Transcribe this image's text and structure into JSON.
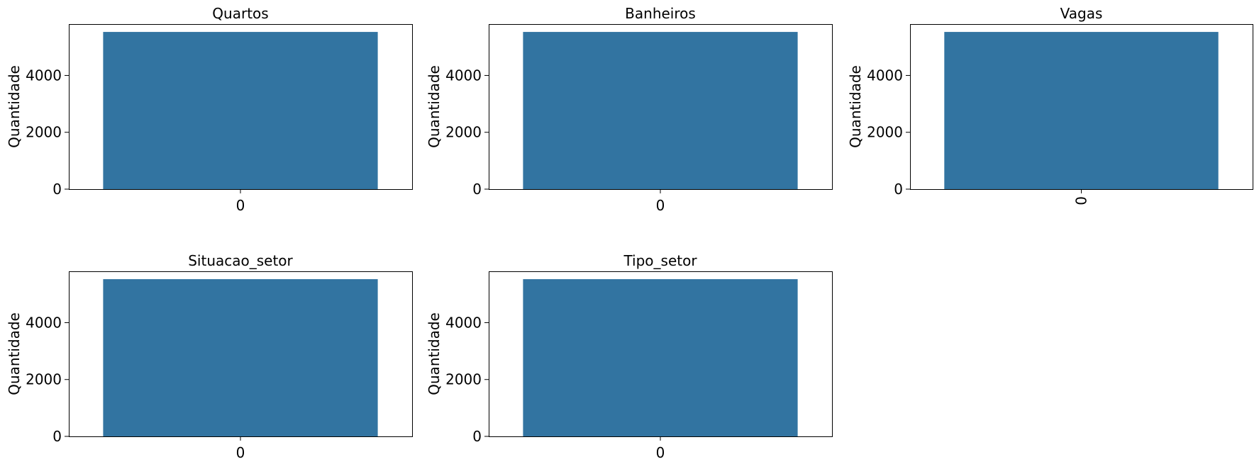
{
  "chart_data": [
    {
      "type": "bar",
      "title": "Quartos",
      "categories": [
        "0"
      ],
      "values": [
        5530
      ],
      "xlabel": "",
      "ylabel": "Quantidade",
      "ylim": [
        0,
        5806
      ],
      "yticks": [
        "0",
        "2000",
        "4000"
      ],
      "xtick_rotation": 0,
      "grid": false,
      "color": "#3274a1"
    },
    {
      "type": "bar",
      "title": "Banheiros",
      "categories": [
        "0"
      ],
      "values": [
        5530
      ],
      "xlabel": "",
      "ylabel": "Quantidade",
      "ylim": [
        0,
        5806
      ],
      "yticks": [
        "0",
        "2000",
        "4000"
      ],
      "xtick_rotation": 0,
      "grid": false,
      "color": "#3274a1"
    },
    {
      "type": "bar",
      "title": "Vagas",
      "categories": [
        "0"
      ],
      "values": [
        5530
      ],
      "xlabel": "",
      "ylabel": "Quantidade",
      "ylim": [
        0,
        5806
      ],
      "yticks": [
        "0",
        "2000",
        "4000"
      ],
      "xtick_rotation": 90,
      "grid": false,
      "color": "#3274a1"
    },
    {
      "type": "bar",
      "title": "Situacao_setor",
      "categories": [
        "0"
      ],
      "values": [
        5530
      ],
      "xlabel": "",
      "ylabel": "Quantidade",
      "ylim": [
        0,
        5806
      ],
      "yticks": [
        "0",
        "2000",
        "4000"
      ],
      "xtick_rotation": 0,
      "grid": false,
      "color": "#3274a1"
    },
    {
      "type": "bar",
      "title": "Tipo_setor",
      "categories": [
        "0"
      ],
      "values": [
        5530
      ],
      "xlabel": "",
      "ylabel": "Quantidade",
      "ylim": [
        0,
        5806
      ],
      "yticks": [
        "0",
        "2000",
        "4000"
      ],
      "xtick_rotation": 0,
      "grid": false,
      "color": "#3274a1"
    }
  ]
}
